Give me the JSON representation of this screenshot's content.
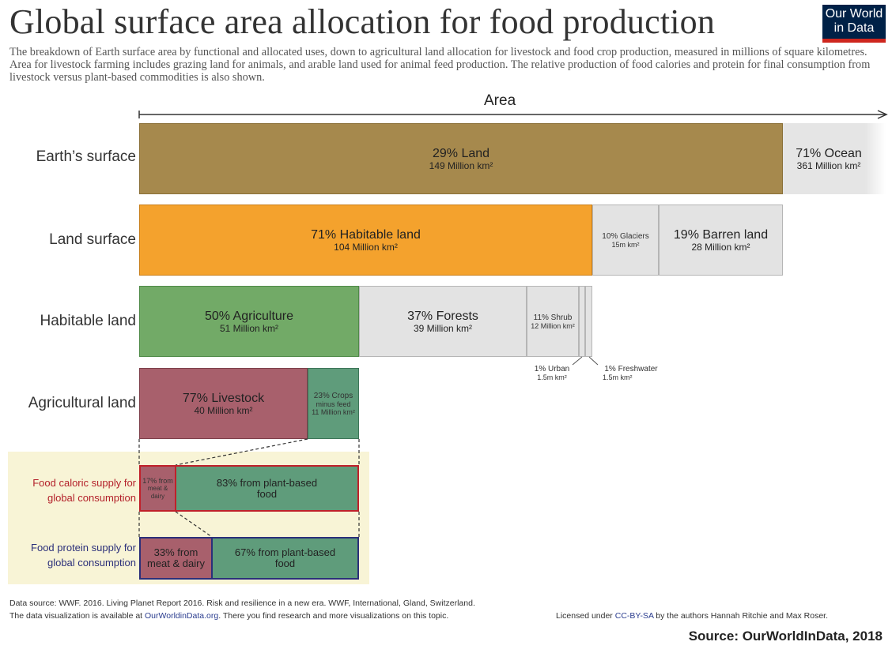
{
  "title": "Global surface area allocation for food production",
  "subtitle": "The breakdown of Earth surface area by functional and allocated uses, down to agricultural land allocation for livestock and food crop production, measured in millions of square kilometres. Area for livestock farming includes grazing land for animals, and arable land used for animal feed production. The relative production of food calories and protein for final consumption from livestock versus plant-based commodities is also shown.",
  "logo": {
    "line1": "Our World",
    "line2": "in Data"
  },
  "axis_label": "Area",
  "colors": {
    "land": "#a6894d",
    "ocean": "#e5e5e5",
    "habitable": "#f4a22d",
    "agriculture": "#72aa67",
    "grey": "#e3e3e3",
    "livestock": "#a8606c",
    "crops": "#5f9c7b",
    "highlight_bg": "#f8f4d6",
    "caloric_border": "#c0202a",
    "protein_border": "#2b2f7a"
  },
  "chart_data": {
    "type": "bar",
    "unit": "Million km²",
    "rows": [
      {
        "label": "Earth’s surface",
        "segments": [
          {
            "name": "Land",
            "label": "29% Land",
            "sub": "149 Million km²",
            "value": 149,
            "percent": 29
          },
          {
            "name": "Ocean",
            "label": "71% Ocean",
            "sub": "361 Million km²",
            "value": 361,
            "percent": 71
          }
        ]
      },
      {
        "label": "Land surface",
        "segments": [
          {
            "name": "Habitable land",
            "label": "71% Habitable land",
            "sub": "104 Million km²",
            "value": 104,
            "percent": 71
          },
          {
            "name": "Glaciers",
            "label": "10% Glaciers",
            "sub": "15m km²",
            "value": 15,
            "percent": 10
          },
          {
            "name": "Barren land",
            "label": "19% Barren land",
            "sub": "28 Million km²",
            "value": 28,
            "percent": 19
          }
        ]
      },
      {
        "label": "Habitable land",
        "segments": [
          {
            "name": "Agriculture",
            "label": "50% Agriculture",
            "sub": "51 Million km²",
            "value": 51,
            "percent": 50
          },
          {
            "name": "Forests",
            "label": "37% Forests",
            "sub": "39 Million km²",
            "value": 39,
            "percent": 37
          },
          {
            "name": "Shrub",
            "label": "11% Shrub",
            "sub": "12 Million km²",
            "value": 12,
            "percent": 11
          },
          {
            "name": "Urban",
            "label": "1% Urban",
            "sub": "1.5m km²",
            "value": 1.5,
            "percent": 1
          },
          {
            "name": "Freshwater",
            "label": "1% Freshwater",
            "sub": "1.5m km²",
            "value": 1.5,
            "percent": 1
          }
        ]
      },
      {
        "label": "Agricultural land",
        "segments": [
          {
            "name": "Livestock",
            "label": "77% Livestock",
            "sub": "40 Million km²",
            "value": 40,
            "percent": 77
          },
          {
            "name": "Crops",
            "label": "23% Crops",
            "sub_lines": [
              "minus feed",
              "11 Million km²"
            ],
            "value": 11,
            "percent": 23
          }
        ]
      }
    ],
    "supply": [
      {
        "label_lines": [
          "Food caloric supply for",
          "global consumption"
        ],
        "segments": [
          {
            "name": "meat & dairy",
            "label_lines": [
              "17% from",
              "meat & dairy"
            ],
            "percent": 17
          },
          {
            "name": "plant-based",
            "label_lines": [
              "83% from plant-based",
              "food"
            ],
            "percent": 83
          }
        ]
      },
      {
        "label_lines": [
          "Food protein supply for",
          "global consumption"
        ],
        "segments": [
          {
            "name": "meat & dairy",
            "label_lines": [
              "33% from",
              "meat & dairy"
            ],
            "percent": 33
          },
          {
            "name": "plant-based",
            "label_lines": [
              "67% from plant-based",
              "food"
            ],
            "percent": 67
          }
        ]
      }
    ]
  },
  "footer": {
    "line1": "Data source: WWF. 2016. Living Planet Report 2016. Risk and resilience in a new era. WWF, International, Gland, Switzerland.",
    "line2_pre": "The data visualization is available at ",
    "line2_link": "OurWorldinData.org",
    "line2_post": ". There you find research and more visualizations on this topic.",
    "license_pre": "Licensed under ",
    "license_link": "CC-BY-SA",
    "license_post": " by the authors Hannah Ritchie and Max Roser.",
    "source": "Source: OurWorldInData, 2018"
  }
}
